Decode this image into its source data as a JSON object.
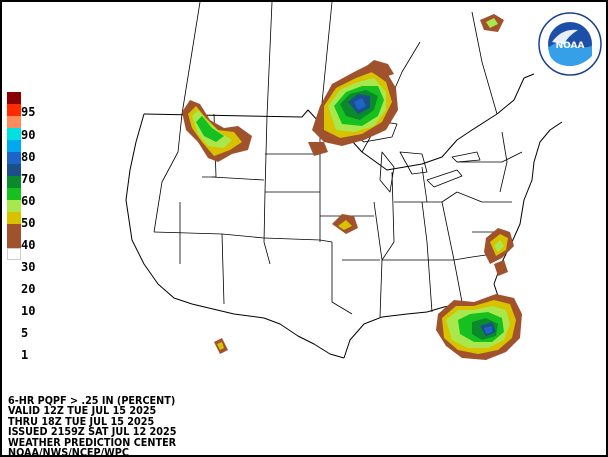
{
  "legend": {
    "levels": [
      {
        "label": "95",
        "color": "#8b0000"
      },
      {
        "label": "90",
        "color": "#ff2a00"
      },
      {
        "label": "80",
        "color": "#ff8c5a"
      },
      {
        "label": "70",
        "color": "#00e0e0"
      },
      {
        "label": "60",
        "color": "#00a8f0"
      },
      {
        "label": "50",
        "color": "#1e64c8"
      },
      {
        "label": "40",
        "color": "#1a4f8a"
      },
      {
        "label": "30",
        "color": "#0a8a2a"
      },
      {
        "label": "20",
        "color": "#16c01e"
      },
      {
        "label": "10",
        "color": "#a8e84c"
      },
      {
        "label": "5",
        "color": "#d8c200"
      },
      {
        "label": "",
        "color": "#a0522d"
      },
      {
        "label": "1",
        "color": "#a0522d"
      },
      {
        "label": "",
        "color": "#ffffff"
      }
    ]
  },
  "caption": {
    "line1": "6-HR PQPF > .25 IN (PERCENT)",
    "line2": "VALID 12Z TUE JUL 15 2025",
    "line3": "THRU 18Z TUE JUL 15 2025",
    "line4": "ISSUED 2159Z SAT JUL 12 2025",
    "line5": "WEATHER PREDICTION CENTER",
    "line6": "NOAA/NWS/NCEP/WPC"
  },
  "logo": {
    "text": "NOAA"
  },
  "colors": {
    "brown": "#a0522d",
    "yellow": "#d8c200",
    "lightgreen": "#a8e84c",
    "green": "#16c01e",
    "darkgreen": "#0a8a2a",
    "navy": "#1a4f8a",
    "blue": "#1e64c8",
    "lightblue": "#00a8f0"
  }
}
